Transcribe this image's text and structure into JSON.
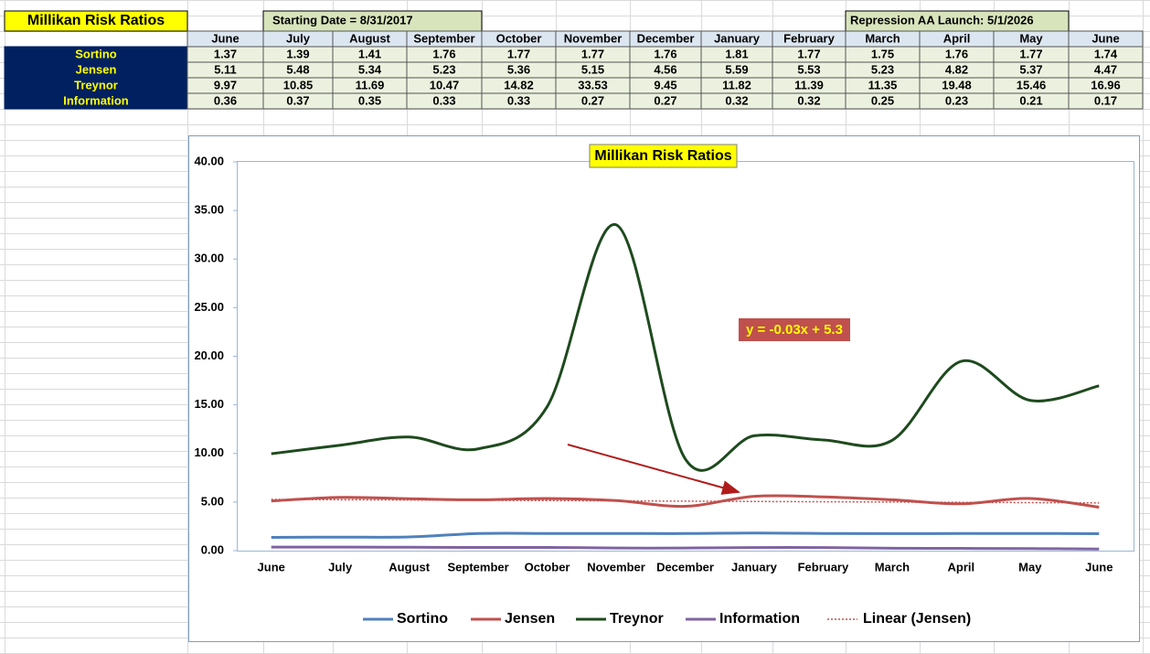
{
  "sheet": {
    "title": "Millikan Risk Ratios",
    "starting_date": "Starting Date = 8/31/2017",
    "launch": "Repression AA Launch: 5/1/2026",
    "table": {
      "columns": [
        "June",
        "July",
        "August",
        "September",
        "October",
        "November",
        "December",
        "January",
        "February",
        "March",
        "April",
        "May",
        "June"
      ],
      "rows": [
        {
          "label": "Sortino",
          "values": [
            1.37,
            1.39,
            1.41,
            1.76,
            1.77,
            1.77,
            1.76,
            1.81,
            1.77,
            1.75,
            1.76,
            1.77,
            1.74
          ]
        },
        {
          "label": "Jensen",
          "values": [
            5.11,
            5.48,
            5.34,
            5.23,
            5.36,
            5.15,
            4.56,
            5.59,
            5.53,
            5.23,
            4.82,
            5.37,
            4.47
          ]
        },
        {
          "label": "Treynor",
          "values": [
            9.97,
            10.85,
            11.69,
            10.47,
            14.82,
            33.53,
            9.45,
            11.82,
            11.39,
            11.35,
            19.48,
            15.46,
            16.96
          ]
        },
        {
          "label": "Information",
          "values": [
            0.36,
            0.37,
            0.35,
            0.33,
            0.33,
            0.27,
            0.27,
            0.32,
            0.32,
            0.25,
            0.23,
            0.21,
            0.17
          ]
        }
      ]
    }
  },
  "chart_data": {
    "type": "line",
    "title": "Millikan Risk Ratios",
    "categories": [
      "June",
      "July",
      "August",
      "September",
      "October",
      "November",
      "December",
      "January",
      "February",
      "March",
      "April",
      "May",
      "June"
    ],
    "series": [
      {
        "name": "Sortino",
        "color": "#4f81bd",
        "values": [
          1.37,
          1.39,
          1.41,
          1.76,
          1.77,
          1.77,
          1.76,
          1.81,
          1.77,
          1.75,
          1.76,
          1.77,
          1.74
        ]
      },
      {
        "name": "Jensen",
        "color": "#c0504d",
        "values": [
          5.11,
          5.48,
          5.34,
          5.23,
          5.36,
          5.15,
          4.56,
          5.59,
          5.53,
          5.23,
          4.82,
          5.37,
          4.47
        ]
      },
      {
        "name": "Treynor",
        "color": "#1e4a1e",
        "values": [
          9.97,
          10.85,
          11.69,
          10.47,
          14.82,
          33.53,
          9.45,
          11.82,
          11.39,
          11.35,
          19.48,
          15.46,
          16.96
        ]
      },
      {
        "name": "Information",
        "color": "#8064a2",
        "values": [
          0.36,
          0.37,
          0.35,
          0.33,
          0.33,
          0.27,
          0.27,
          0.32,
          0.32,
          0.25,
          0.23,
          0.21,
          0.17
        ]
      }
    ],
    "trendline": {
      "name": "Linear (Jensen)",
      "label": "y = -0.03x + 5.3",
      "slope": -0.03,
      "intercept": 5.3,
      "color": "#c0504d"
    },
    "ylim": [
      0,
      40
    ],
    "yticks": [
      {
        "value": 0,
        "label": "0.00"
      },
      {
        "value": 5,
        "label": "5.00"
      },
      {
        "value": 10,
        "label": "10.00"
      },
      {
        "value": 15,
        "label": "15.00"
      },
      {
        "value": 20,
        "label": "20.00"
      },
      {
        "value": 25,
        "label": "25.00"
      },
      {
        "value": 30,
        "label": "30.00"
      },
      {
        "value": 35,
        "label": "35.00"
      },
      {
        "value": 40,
        "label": "40.00"
      }
    ],
    "legend": "bottom",
    "smooth": true
  }
}
